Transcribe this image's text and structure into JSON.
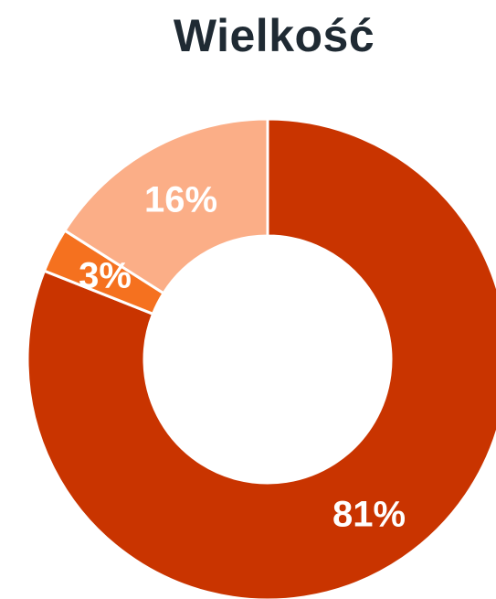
{
  "chart_data": {
    "type": "pie",
    "title": "Wielkość",
    "donut": true,
    "categories": [
      "",
      "",
      ""
    ],
    "values": [
      81,
      3,
      16
    ],
    "labels": [
      "81%",
      "3%",
      "16%"
    ],
    "colors": [
      "#c93400",
      "#f5711f",
      "#fbae87"
    ],
    "start": "top",
    "direction": "clockwise"
  }
}
